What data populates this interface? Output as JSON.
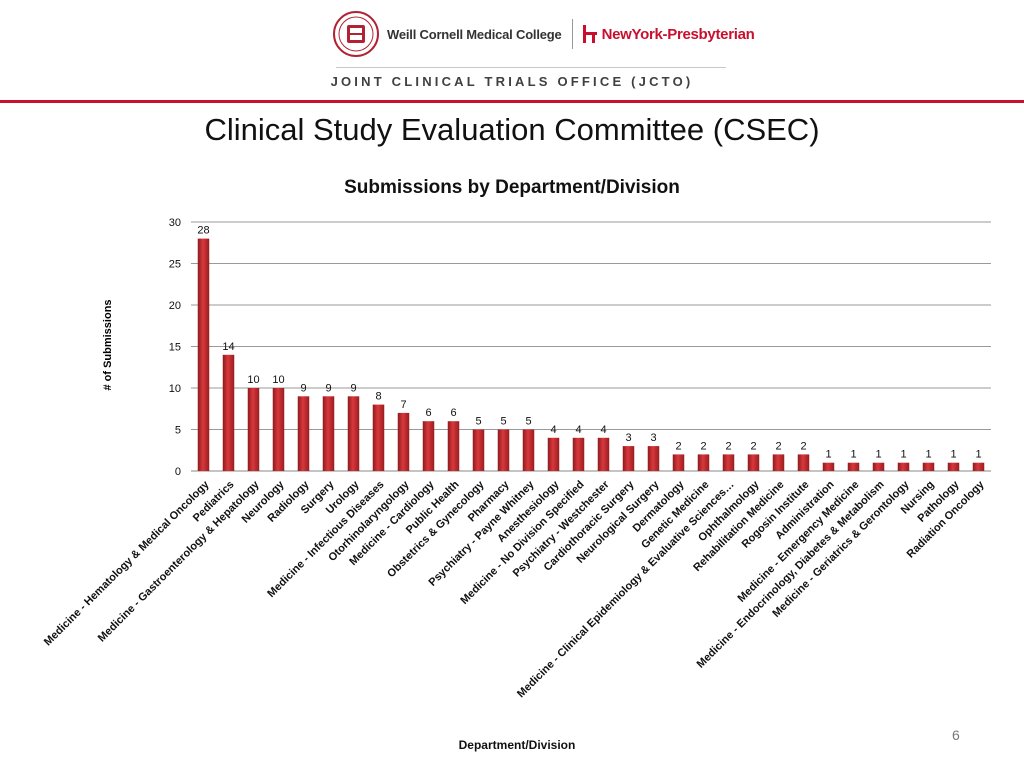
{
  "header": {
    "college": "Weill Cornell Medical College",
    "hospital": "NewYork-Presbyterian",
    "office": "JOINT CLINICAL TRIALS OFFICE (JCTO)",
    "colors": {
      "accent": "#c8102e",
      "seal": "#b22234"
    },
    "icons": [
      "cornell-seal-icon",
      "nyp-logo-icon"
    ]
  },
  "slide": {
    "title": "Clinical Study Evaluation Committee (CSEC)",
    "page_number": "6"
  },
  "chart_data": {
    "type": "bar",
    "title": "Submissions by Department/Division",
    "xlabel": "Department/Division",
    "ylabel": "# of Submissions",
    "ylim": [
      0,
      30
    ],
    "yticks": [
      0,
      5,
      10,
      15,
      20,
      25,
      30
    ],
    "grid": true,
    "legend": "none",
    "bar_color": "#c0282d",
    "categories": [
      "Medicine - Hematology & Medical Oncology",
      "Pediatrics",
      "Medicine - Gastroenterology & Hepatology",
      "Neurology",
      "Radiology",
      "Surgery",
      "Urology",
      "Medicine - Infectious Diseases",
      "Otorhinolaryngology",
      "Medicine - Cardiology",
      "Public Health",
      "Obstetrics & Gynecology",
      "Pharmacy",
      "Psychiatry - Payne Whitney",
      "Anesthesiology",
      "Medicine - No Division Specified",
      "Psychiatry - Westchester",
      "Cardiothoracic Surgery",
      "Neurological Surgery",
      "Dermatology",
      "Genetic Medicine",
      "Medicine - Clinical Epidemiology & Evaluative Sciences…",
      "Ophthalmology",
      "Rehabilitation Medicine",
      "Rogosin Institute",
      "Administration",
      "Medicine - Emergency Medicine",
      "Medicine - Endocrinology, Diabetes & Metabolism",
      "Medicine - Geriatrics & Gerontology",
      "Nursing",
      "Pathology",
      "Radiation Oncology"
    ],
    "values": [
      28,
      14,
      10,
      10,
      9,
      9,
      9,
      8,
      7,
      6,
      6,
      5,
      5,
      5,
      4,
      4,
      4,
      3,
      3,
      2,
      2,
      2,
      2,
      2,
      2,
      1,
      1,
      1,
      1,
      1,
      1,
      1
    ]
  }
}
